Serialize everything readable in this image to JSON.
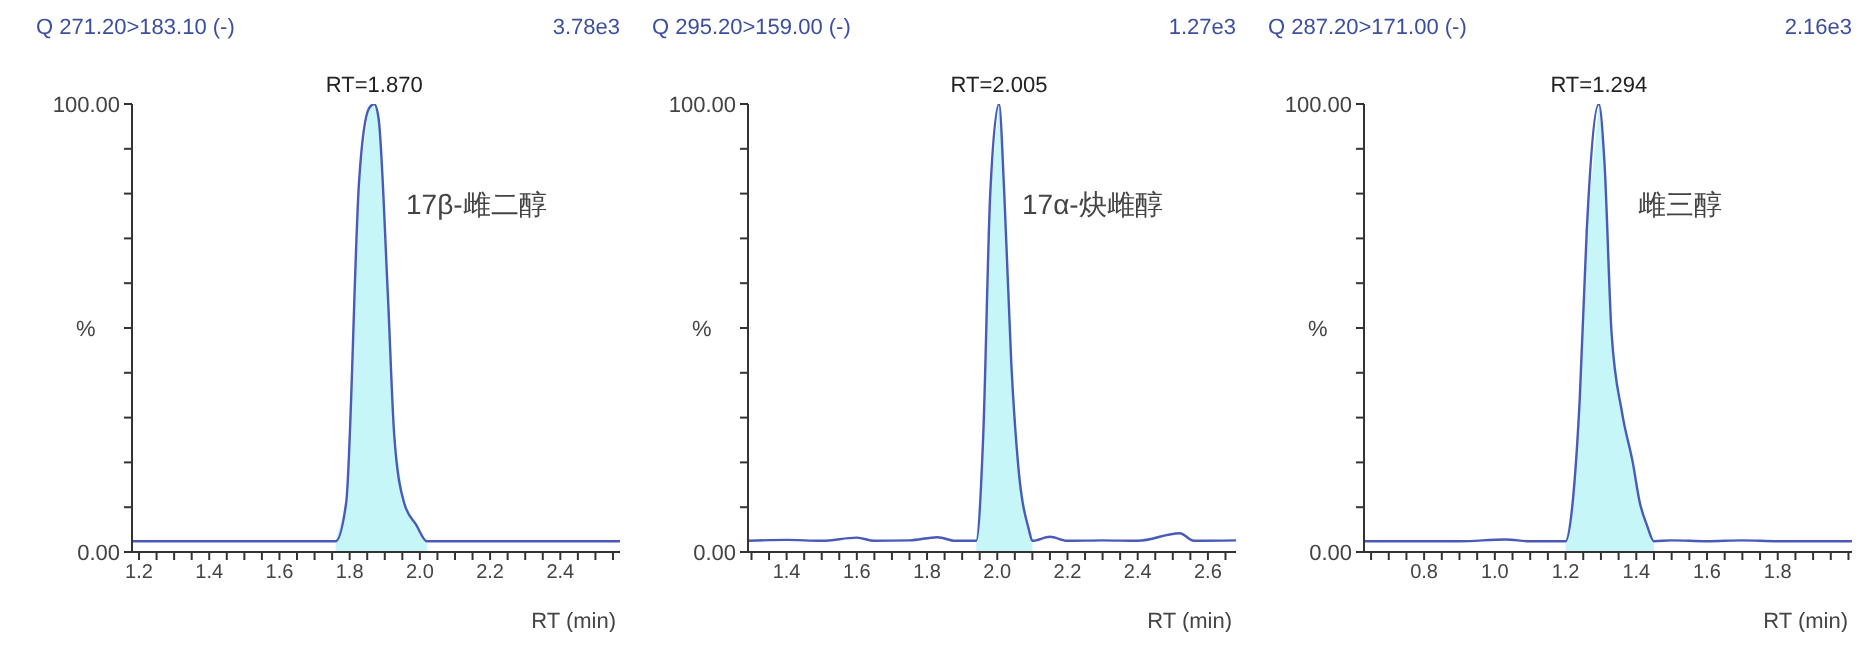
{
  "chart_data": [
    {
      "type": "line",
      "title": "Q 271.20>183.10 (-)",
      "subtitle": "3.78e3",
      "ylabel": "%",
      "xlabel": "RT (min)",
      "xlim": [
        1.18,
        2.57
      ],
      "xticks": [
        1.2,
        {
          "value": 1.25,
          "label": null
        },
        {
          "value": 1.3,
          "label": null
        },
        {
          "value": 1.35,
          "label": null
        },
        1.4,
        {
          "value": 1.45,
          "label": null
        },
        {
          "value": 1.5,
          "label": null
        },
        {
          "value": 1.55,
          "label": null
        },
        1.6,
        {
          "value": 1.65,
          "label": null
        },
        {
          "value": 1.7,
          "label": null
        },
        {
          "value": 1.75,
          "label": null
        },
        1.8,
        {
          "value": 1.85,
          "label": null
        },
        {
          "value": 1.9,
          "label": null
        },
        {
          "value": 1.95,
          "label": null
        },
        {
          "value": 2,
          "label": "2.0"
        },
        {
          "value": 2.05,
          "label": null
        },
        {
          "value": 2.1,
          "label": null
        },
        {
          "value": 2.15,
          "label": null
        },
        2.2,
        {
          "value": 2.25,
          "label": null
        },
        {
          "value": 2.3,
          "label": null
        },
        {
          "value": 2.35,
          "label": null
        },
        2.4,
        {
          "value": 2.45,
          "label": null
        },
        {
          "value": 2.5,
          "label": null
        },
        {
          "value": 2.55,
          "label": null
        }
      ],
      "ylim": [
        0,
        100
      ],
      "yticks": [
        {
          "value": 0,
          "label": "0.00"
        },
        {
          "value": 10,
          "label": null
        },
        {
          "value": 20,
          "label": null
        },
        {
          "value": 30,
          "label": null
        },
        {
          "value": 40,
          "label": null
        },
        {
          "value": 50,
          "label": null
        },
        {
          "value": 60,
          "label": null
        },
        {
          "value": 70,
          "label": null
        },
        {
          "value": 80,
          "label": null
        },
        {
          "value": 90,
          "label": null
        },
        {
          "value": 100,
          "label": "100.00"
        }
      ],
      "marker": "none",
      "series": [
        {
          "type": "area",
          "color": "#c6f6f8",
          "x": [
            1.76,
            1.79,
            1.827,
            1.855,
            1.87,
            1.882,
            1.909,
            1.927,
            1.955,
            1.99,
            2.02
          ],
          "values": [
            2.4,
            11,
            83,
            99,
            100,
            97,
            57,
            26,
            11,
            6,
            2.4
          ]
        },
        {
          "color": "#4a5ab8",
          "x": [
            1.18,
            1.5,
            1.76,
            1.79,
            1.827,
            1.855,
            1.87,
            1.882,
            1.909,
            1.927,
            1.955,
            1.99,
            2.02,
            2.3,
            2.57
          ],
          "values": [
            2.4,
            2.4,
            2.4,
            11,
            83,
            99,
            100,
            97,
            57,
            26,
            11,
            6,
            2.4,
            2.4,
            2.4
          ]
        }
      ],
      "annotations": [
        {
          "text": "RT=1.870",
          "x": 1.87,
          "y": 100
        },
        "17β-雌二醇"
      ]
    },
    {
      "type": "line",
      "title": "Q 295.20>159.00 (-)",
      "subtitle": "1.27e3",
      "ylabel": "%",
      "xlabel": "RT (min)",
      "xlim": [
        1.29,
        2.68
      ],
      "xticks": [
        {
          "value": 1.3,
          "label": null
        },
        {
          "value": 1.35,
          "label": null
        },
        1.4,
        {
          "value": 1.45,
          "label": null
        },
        {
          "value": 1.5,
          "label": null
        },
        {
          "value": 1.55,
          "label": null
        },
        1.6,
        {
          "value": 1.65,
          "label": null
        },
        {
          "value": 1.7,
          "label": null
        },
        {
          "value": 1.75,
          "label": null
        },
        1.8,
        {
          "value": 1.85,
          "label": null
        },
        {
          "value": 1.9,
          "label": null
        },
        {
          "value": 1.95,
          "label": null
        },
        {
          "value": 2,
          "label": "2.0"
        },
        {
          "value": 2.05,
          "label": null
        },
        {
          "value": 2.1,
          "label": null
        },
        {
          "value": 2.15,
          "label": null
        },
        2.2,
        {
          "value": 2.25,
          "label": null
        },
        {
          "value": 2.3,
          "label": null
        },
        {
          "value": 2.35,
          "label": null
        },
        2.4,
        {
          "value": 2.45,
          "label": null
        },
        {
          "value": 2.5,
          "label": null
        },
        {
          "value": 2.55,
          "label": null
        },
        2.6,
        {
          "value": 2.65,
          "label": null
        }
      ],
      "ylim": [
        0,
        100
      ],
      "yticks": [
        {
          "value": 0,
          "label": "0.00"
        },
        {
          "value": 10,
          "label": null
        },
        {
          "value": 20,
          "label": null
        },
        {
          "value": 30,
          "label": null
        },
        {
          "value": 40,
          "label": null
        },
        {
          "value": 50,
          "label": null
        },
        {
          "value": 60,
          "label": null
        },
        {
          "value": 70,
          "label": null
        },
        {
          "value": 80,
          "label": null
        },
        {
          "value": 90,
          "label": null
        },
        {
          "value": 100,
          "label": "100.00"
        }
      ],
      "marker": "none",
      "series": [
        {
          "type": "area",
          "color": "#c6f6f8",
          "x": [
            1.94,
            1.96,
            1.98,
            2.005,
            2.02,
            2.04,
            2.06,
            2.09,
            2.1
          ],
          "values": [
            2.5,
            26,
            80,
            100,
            80,
            42,
            19,
            5,
            2.5
          ]
        },
        {
          "color": "#4a5ab8",
          "x": [
            1.29,
            1.4,
            1.5,
            1.6,
            1.65,
            1.75,
            1.83,
            1.88,
            1.94,
            1.96,
            1.98,
            2.005,
            2.02,
            2.04,
            2.06,
            2.09,
            2.1,
            2.15,
            2.2,
            2.3,
            2.4,
            2.52,
            2.56,
            2.68
          ],
          "values": [
            2.5,
            2.7,
            2.5,
            3.2,
            2.5,
            2.6,
            3.3,
            2.5,
            2.5,
            26,
            80,
            100,
            80,
            42,
            19,
            5,
            2.5,
            3.4,
            2.5,
            2.6,
            2.5,
            4.2,
            2.5,
            2.6
          ]
        }
      ],
      "annotations": [
        {
          "text": "RT=2.005",
          "x": 2.005,
          "y": 100
        },
        "17α-炔雌醇"
      ]
    },
    {
      "type": "line",
      "title": "Q 287.20>171.00 (-)",
      "subtitle": "2.16e3",
      "ylabel": "%",
      "xlabel": "RT (min)",
      "xlim": [
        0.63,
        2.01
      ],
      "xticks": [
        {
          "value": 0.65,
          "label": null
        },
        {
          "value": 0.7,
          "label": null
        },
        {
          "value": 0.75,
          "label": null
        },
        0.8,
        {
          "value": 0.85,
          "label": null
        },
        {
          "value": 0.9,
          "label": null
        },
        {
          "value": 0.95,
          "label": null
        },
        {
          "value": 1,
          "label": "1.0"
        },
        {
          "value": 1.05,
          "label": null
        },
        {
          "value": 1.1,
          "label": null
        },
        {
          "value": 1.15,
          "label": null
        },
        1.2,
        {
          "value": 1.25,
          "label": null
        },
        {
          "value": 1.3,
          "label": null
        },
        {
          "value": 1.35,
          "label": null
        },
        1.4,
        {
          "value": 1.45,
          "label": null
        },
        {
          "value": 1.5,
          "label": null
        },
        {
          "value": 1.55,
          "label": null
        },
        1.6,
        {
          "value": 1.65,
          "label": null
        },
        {
          "value": 1.7,
          "label": null
        },
        {
          "value": 1.75,
          "label": null
        },
        1.8,
        {
          "value": 1.85,
          "label": null
        },
        {
          "value": 1.9,
          "label": null
        },
        {
          "value": 1.95,
          "label": null
        },
        {
          "value": 2,
          "label": null
        }
      ],
      "ylim": [
        0,
        100
      ],
      "yticks": [
        {
          "value": 0,
          "label": "0.00"
        },
        {
          "value": 10,
          "label": null
        },
        {
          "value": 20,
          "label": null
        },
        {
          "value": 30,
          "label": null
        },
        {
          "value": 40,
          "label": null
        },
        {
          "value": 50,
          "label": null
        },
        {
          "value": 60,
          "label": null
        },
        {
          "value": 70,
          "label": null
        },
        {
          "value": 80,
          "label": null
        },
        {
          "value": 90,
          "label": null
        },
        {
          "value": 100,
          "label": "100.00"
        }
      ],
      "marker": "none",
      "series": [
        {
          "type": "area",
          "color": "#c6f6f8",
          "x": [
            1.2,
            1.22,
            1.24,
            1.26,
            1.294,
            1.31,
            1.33,
            1.36,
            1.39,
            1.41,
            1.43,
            1.45
          ],
          "values": [
            2.4,
            11,
            34,
            72,
            100,
            87,
            49,
            31,
            20,
            11,
            6,
            2.4
          ]
        },
        {
          "color": "#4a5ab8",
          "x": [
            0.63,
            0.9,
            1.03,
            1.1,
            1.2,
            1.22,
            1.24,
            1.26,
            1.294,
            1.31,
            1.33,
            1.36,
            1.39,
            1.41,
            1.43,
            1.45,
            1.5,
            1.6,
            1.7,
            1.8,
            2.01
          ],
          "values": [
            2.4,
            2.4,
            2.8,
            2.4,
            2.4,
            11,
            34,
            72,
            100,
            87,
            49,
            31,
            20,
            11,
            6,
            2.4,
            2.6,
            2.4,
            2.6,
            2.4,
            2.4
          ]
        }
      ],
      "annotations": [
        {
          "text": "RT=1.294",
          "x": 1.294,
          "y": 100
        },
        "雌三醇"
      ]
    }
  ]
}
